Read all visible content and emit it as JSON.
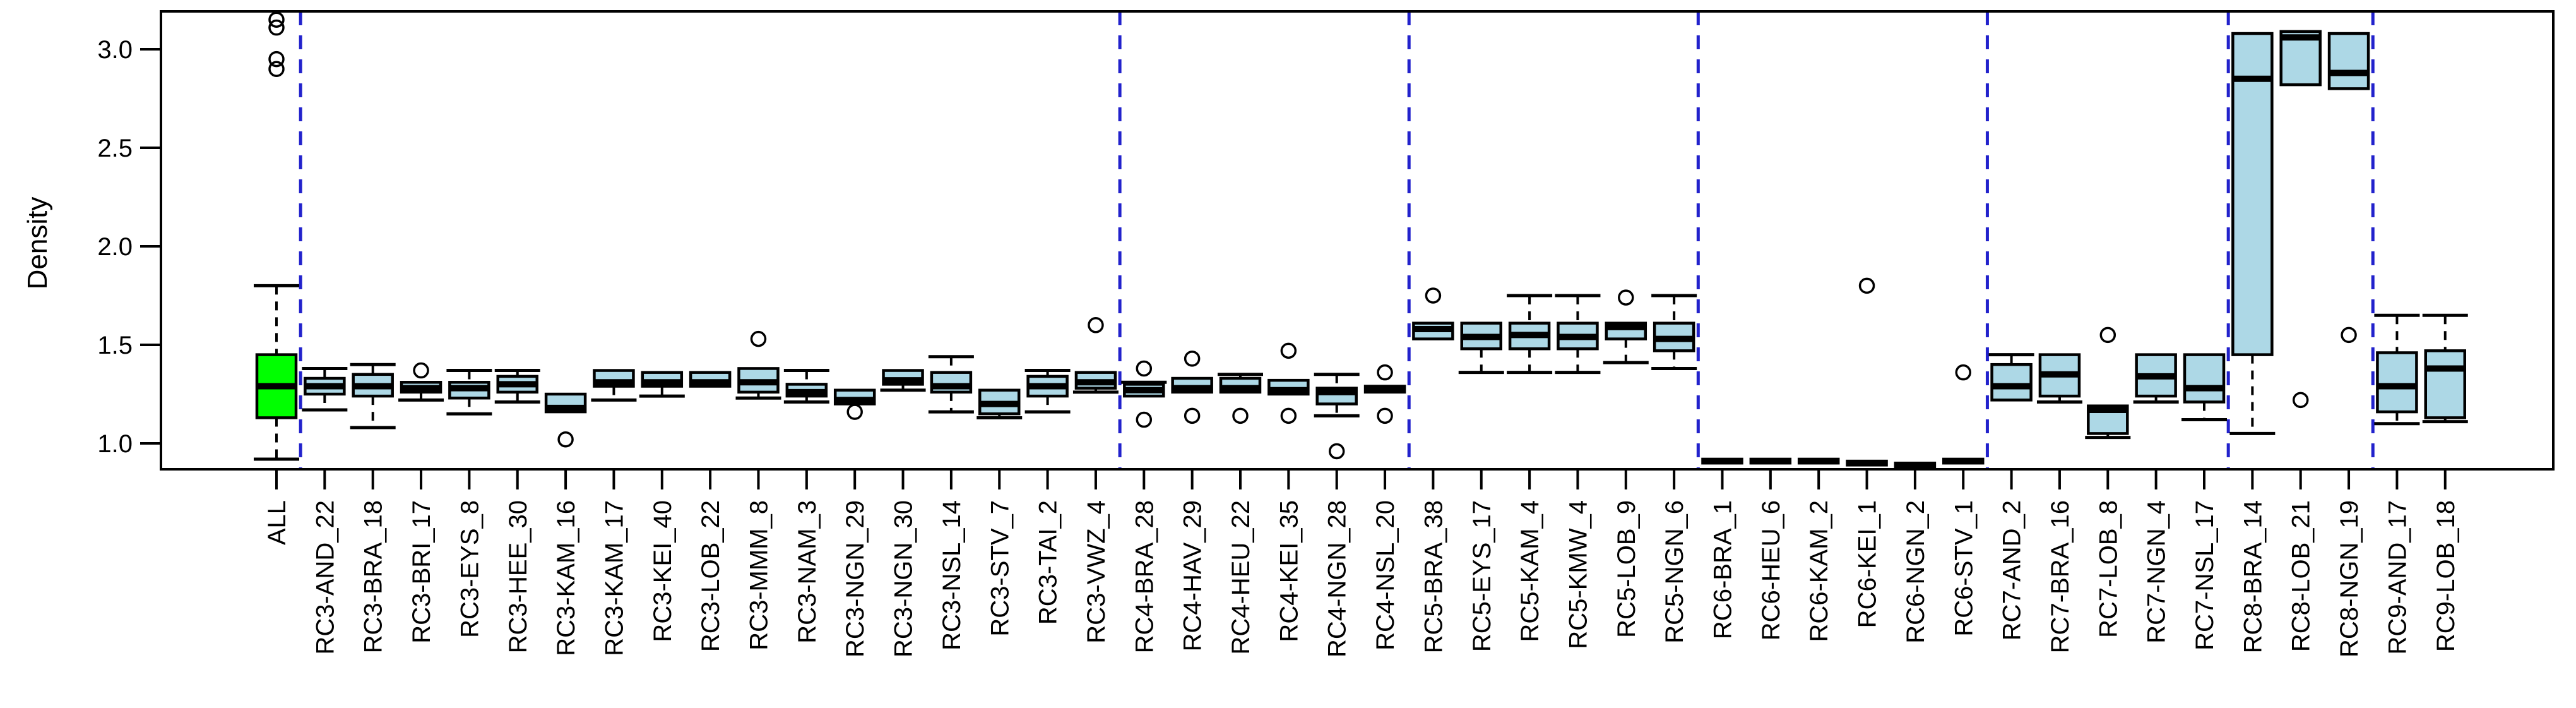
{
  "chart_data": {
    "type": "boxplot",
    "title": "",
    "xlabel": "",
    "ylabel": "Density",
    "ylim": [
      0.87,
      3.19
    ],
    "y_ticks": [
      1.0,
      1.5,
      2.0,
      2.5,
      3.0
    ],
    "y_tick_labels": [
      "1.0",
      "1.5",
      "2.0",
      "2.5",
      "3.0"
    ],
    "grid": false,
    "legend": null,
    "colors": {
      "highlight_box_fill": "#00FF00",
      "default_box_fill": "#ADD8E6",
      "box_stroke": "#000000",
      "separator_line": "#2222CC",
      "axis": "#000000"
    },
    "separators_after": [
      "ALL",
      "RC3-VWZ_4",
      "RC4-NSL_20",
      "RC5-NGN_6",
      "RC6-STV_1",
      "RC7-NSL_17",
      "RC8-NGN_19"
    ],
    "groups": [
      "ALL",
      "RC3",
      "RC4",
      "RC5",
      "RC6",
      "RC7",
      "RC8",
      "RC9"
    ],
    "boxes": [
      {
        "label": "ALL",
        "group": "ALL",
        "fill": "#00FF00",
        "whisker_low": 0.92,
        "q1": 1.13,
        "median": 1.29,
        "q3": 1.45,
        "whisker_high": 1.8,
        "outliers": [
          2.9,
          2.95,
          3.11,
          3.15
        ]
      },
      {
        "label": "RC3-AND_22",
        "group": "RC3",
        "fill": "#ADD8E6",
        "whisker_low": 1.17,
        "q1": 1.25,
        "median": 1.29,
        "q3": 1.33,
        "whisker_high": 1.38,
        "outliers": []
      },
      {
        "label": "RC3-BRA_18",
        "group": "RC3",
        "fill": "#ADD8E6",
        "whisker_low": 1.08,
        "q1": 1.24,
        "median": 1.29,
        "q3": 1.35,
        "whisker_high": 1.4,
        "outliers": []
      },
      {
        "label": "RC3-BRI_17",
        "group": "RC3",
        "fill": "#ADD8E6",
        "whisker_low": 1.22,
        "q1": 1.26,
        "median": 1.28,
        "q3": 1.31,
        "whisker_high": 1.31,
        "outliers": [
          1.37
        ]
      },
      {
        "label": "RC3-EYS_8",
        "group": "RC3",
        "fill": "#ADD8E6",
        "whisker_low": 1.15,
        "q1": 1.23,
        "median": 1.28,
        "q3": 1.31,
        "whisker_high": 1.37,
        "outliers": []
      },
      {
        "label": "RC3-HEE_30",
        "group": "RC3",
        "fill": "#ADD8E6",
        "whisker_low": 1.21,
        "q1": 1.26,
        "median": 1.3,
        "q3": 1.34,
        "whisker_high": 1.37,
        "outliers": []
      },
      {
        "label": "RC3-KAM_16",
        "group": "RC3",
        "fill": "#ADD8E6",
        "whisker_low": 1.16,
        "q1": 1.16,
        "median": 1.18,
        "q3": 1.25,
        "whisker_high": 1.25,
        "outliers": [
          1.02
        ]
      },
      {
        "label": "RC3-KAM_17",
        "group": "RC3",
        "fill": "#ADD8E6",
        "whisker_low": 1.22,
        "q1": 1.29,
        "median": 1.31,
        "q3": 1.37,
        "whisker_high": 1.37,
        "outliers": []
      },
      {
        "label": "RC3-KEI_40",
        "group": "RC3",
        "fill": "#ADD8E6",
        "whisker_low": 1.24,
        "q1": 1.29,
        "median": 1.31,
        "q3": 1.36,
        "whisker_high": 1.36,
        "outliers": []
      },
      {
        "label": "RC3-LOB_22",
        "group": "RC3",
        "fill": "#ADD8E6",
        "whisker_low": 1.29,
        "q1": 1.29,
        "median": 1.31,
        "q3": 1.36,
        "whisker_high": 1.36,
        "outliers": []
      },
      {
        "label": "RC3-MMM_8",
        "group": "RC3",
        "fill": "#ADD8E6",
        "whisker_low": 1.23,
        "q1": 1.26,
        "median": 1.31,
        "q3": 1.38,
        "whisker_high": 1.38,
        "outliers": [
          1.53
        ]
      },
      {
        "label": "RC3-NAM_3",
        "group": "RC3",
        "fill": "#ADD8E6",
        "whisker_low": 1.21,
        "q1": 1.24,
        "median": 1.26,
        "q3": 1.3,
        "whisker_high": 1.37,
        "outliers": []
      },
      {
        "label": "RC3-NGN_29",
        "group": "RC3",
        "fill": "#ADD8E6",
        "whisker_low": 1.2,
        "q1": 1.2,
        "median": 1.22,
        "q3": 1.27,
        "whisker_high": 1.27,
        "outliers": [
          1.16
        ]
      },
      {
        "label": "RC3-NGN_30",
        "group": "RC3",
        "fill": "#ADD8E6",
        "whisker_low": 1.27,
        "q1": 1.3,
        "median": 1.32,
        "q3": 1.37,
        "whisker_high": 1.37,
        "outliers": []
      },
      {
        "label": "RC3-NSL_14",
        "group": "RC3",
        "fill": "#ADD8E6",
        "whisker_low": 1.16,
        "q1": 1.26,
        "median": 1.29,
        "q3": 1.36,
        "whisker_high": 1.44,
        "outliers": []
      },
      {
        "label": "RC3-STV_7",
        "group": "RC3",
        "fill": "#ADD8E6",
        "whisker_low": 1.13,
        "q1": 1.15,
        "median": 1.2,
        "q3": 1.27,
        "whisker_high": 1.27,
        "outliers": []
      },
      {
        "label": "RC3-TAI_2",
        "group": "RC3",
        "fill": "#ADD8E6",
        "whisker_low": 1.16,
        "q1": 1.24,
        "median": 1.29,
        "q3": 1.34,
        "whisker_high": 1.37,
        "outliers": []
      },
      {
        "label": "RC3-VWZ_4",
        "group": "RC3",
        "fill": "#ADD8E6",
        "whisker_low": 1.26,
        "q1": 1.28,
        "median": 1.31,
        "q3": 1.36,
        "whisker_high": 1.36,
        "outliers": [
          1.6
        ]
      },
      {
        "label": "RC4-BRA_28",
        "group": "RC4",
        "fill": "#ADD8E6",
        "whisker_low": 1.24,
        "q1": 1.24,
        "median": 1.27,
        "q3": 1.3,
        "whisker_high": 1.31,
        "outliers": [
          1.38,
          1.12
        ]
      },
      {
        "label": "RC4-HAV_29",
        "group": "RC4",
        "fill": "#ADD8E6",
        "whisker_low": 1.26,
        "q1": 1.26,
        "median": 1.28,
        "q3": 1.33,
        "whisker_high": 1.33,
        "outliers": [
          1.43,
          1.14
        ]
      },
      {
        "label": "RC4-HEU_22",
        "group": "RC4",
        "fill": "#ADD8E6",
        "whisker_low": 1.26,
        "q1": 1.26,
        "median": 1.28,
        "q3": 1.33,
        "whisker_high": 1.35,
        "outliers": [
          1.14
        ]
      },
      {
        "label": "RC4-KEI_35",
        "group": "RC4",
        "fill": "#ADD8E6",
        "whisker_low": 1.25,
        "q1": 1.25,
        "median": 1.27,
        "q3": 1.32,
        "whisker_high": 1.32,
        "outliers": [
          1.47,
          1.14
        ]
      },
      {
        "label": "RC4-NGN_28",
        "group": "RC4",
        "fill": "#ADD8E6",
        "whisker_low": 1.14,
        "q1": 1.2,
        "median": 1.26,
        "q3": 1.28,
        "whisker_high": 1.35,
        "outliers": [
          0.96
        ]
      },
      {
        "label": "RC4-NSL_20",
        "group": "RC4",
        "fill": "#ADD8E6",
        "whisker_low": 1.26,
        "q1": 1.26,
        "median": 1.27,
        "q3": 1.29,
        "whisker_high": 1.29,
        "outliers": [
          1.36,
          1.14
        ]
      },
      {
        "label": "RC5-BRA_38",
        "group": "RC5",
        "fill": "#ADD8E6",
        "whisker_low": 1.53,
        "q1": 1.53,
        "median": 1.58,
        "q3": 1.61,
        "whisker_high": 1.61,
        "outliers": [
          1.75
        ]
      },
      {
        "label": "RC5-EYS_17",
        "group": "RC5",
        "fill": "#ADD8E6",
        "whisker_low": 1.36,
        "q1": 1.48,
        "median": 1.54,
        "q3": 1.61,
        "whisker_high": 1.61,
        "outliers": []
      },
      {
        "label": "RC5-KAM_4",
        "group": "RC5",
        "fill": "#ADD8E6",
        "whisker_low": 1.36,
        "q1": 1.48,
        "median": 1.55,
        "q3": 1.61,
        "whisker_high": 1.75,
        "outliers": []
      },
      {
        "label": "RC5-KMW_4",
        "group": "RC5",
        "fill": "#ADD8E6",
        "whisker_low": 1.36,
        "q1": 1.48,
        "median": 1.54,
        "q3": 1.61,
        "whisker_high": 1.75,
        "outliers": []
      },
      {
        "label": "RC5-LOB_9",
        "group": "RC5",
        "fill": "#ADD8E6",
        "whisker_low": 1.41,
        "q1": 1.53,
        "median": 1.59,
        "q3": 1.61,
        "whisker_high": 1.61,
        "outliers": [
          1.74
        ]
      },
      {
        "label": "RC5-NGN_6",
        "group": "RC5",
        "fill": "#ADD8E6",
        "whisker_low": 1.38,
        "q1": 1.47,
        "median": 1.53,
        "q3": 1.61,
        "whisker_high": 1.75,
        "outliers": []
      },
      {
        "label": "RC6-BRA_1",
        "group": "RC6",
        "fill": "#ADD8E6",
        "whisker_low": 0.9,
        "q1": 0.9,
        "median": 0.91,
        "q3": 0.92,
        "whisker_high": 0.92,
        "outliers": []
      },
      {
        "label": "RC6-HEU_6",
        "group": "RC6",
        "fill": "#ADD8E6",
        "whisker_low": 0.9,
        "q1": 0.9,
        "median": 0.91,
        "q3": 0.92,
        "whisker_high": 0.92,
        "outliers": []
      },
      {
        "label": "RC6-KAM_2",
        "group": "RC6",
        "fill": "#ADD8E6",
        "whisker_low": 0.9,
        "q1": 0.9,
        "median": 0.91,
        "q3": 0.92,
        "whisker_high": 0.92,
        "outliers": []
      },
      {
        "label": "RC6-KEI_1",
        "group": "RC6",
        "fill": "#ADD8E6",
        "whisker_low": 0.89,
        "q1": 0.89,
        "median": 0.9,
        "q3": 0.91,
        "whisker_high": 0.91,
        "outliers": [
          1.8
        ]
      },
      {
        "label": "RC6-NGN_2",
        "group": "RC6",
        "fill": "#ADD8E6",
        "whisker_low": 0.88,
        "q1": 0.88,
        "median": 0.89,
        "q3": 0.9,
        "whisker_high": 0.9,
        "outliers": []
      },
      {
        "label": "RC6-STV_1",
        "group": "RC6",
        "fill": "#ADD8E6",
        "whisker_low": 0.9,
        "q1": 0.9,
        "median": 0.91,
        "q3": 0.92,
        "whisker_high": 0.92,
        "outliers": [
          1.36
        ]
      },
      {
        "label": "RC7-AND_2",
        "group": "RC7",
        "fill": "#ADD8E6",
        "whisker_low": 1.22,
        "q1": 1.22,
        "median": 1.29,
        "q3": 1.4,
        "whisker_high": 1.45,
        "outliers": []
      },
      {
        "label": "RC7-BRA_16",
        "group": "RC7",
        "fill": "#ADD8E6",
        "whisker_low": 1.21,
        "q1": 1.24,
        "median": 1.35,
        "q3": 1.45,
        "whisker_high": 1.45,
        "outliers": []
      },
      {
        "label": "RC7-LOB_8",
        "group": "RC7",
        "fill": "#ADD8E6",
        "whisker_low": 1.03,
        "q1": 1.05,
        "median": 1.17,
        "q3": 1.19,
        "whisker_high": 1.19,
        "outliers": [
          1.55
        ]
      },
      {
        "label": "RC7-NGN_4",
        "group": "RC7",
        "fill": "#ADD8E6",
        "whisker_low": 1.21,
        "q1": 1.24,
        "median": 1.34,
        "q3": 1.45,
        "whisker_high": 1.45,
        "outliers": []
      },
      {
        "label": "RC7-NSL_17",
        "group": "RC7",
        "fill": "#ADD8E6",
        "whisker_low": 1.12,
        "q1": 1.21,
        "median": 1.28,
        "q3": 1.45,
        "whisker_high": 1.45,
        "outliers": []
      },
      {
        "label": "RC8-BRA_14",
        "group": "RC8",
        "fill": "#ADD8E6",
        "whisker_low": 1.05,
        "q1": 1.45,
        "median": 2.85,
        "q3": 3.08,
        "whisker_high": 3.08,
        "outliers": []
      },
      {
        "label": "RC8-LOB_21",
        "group": "RC8",
        "fill": "#ADD8E6",
        "whisker_low": 2.82,
        "q1": 2.82,
        "median": 3.06,
        "q3": 3.09,
        "whisker_high": 3.09,
        "outliers": [
          1.22
        ]
      },
      {
        "label": "RC8-NGN_19",
        "group": "RC8",
        "fill": "#ADD8E6",
        "whisker_low": 2.8,
        "q1": 2.8,
        "median": 2.88,
        "q3": 3.08,
        "whisker_high": 3.08,
        "outliers": [
          1.55
        ]
      },
      {
        "label": "RC9-AND_17",
        "group": "RC9",
        "fill": "#ADD8E6",
        "whisker_low": 1.1,
        "q1": 1.16,
        "median": 1.29,
        "q3": 1.46,
        "whisker_high": 1.65,
        "outliers": []
      },
      {
        "label": "RC9-LOB_18",
        "group": "RC9",
        "fill": "#ADD8E6",
        "whisker_low": 1.11,
        "q1": 1.13,
        "median": 1.38,
        "q3": 1.47,
        "whisker_high": 1.65,
        "outliers": []
      }
    ]
  }
}
